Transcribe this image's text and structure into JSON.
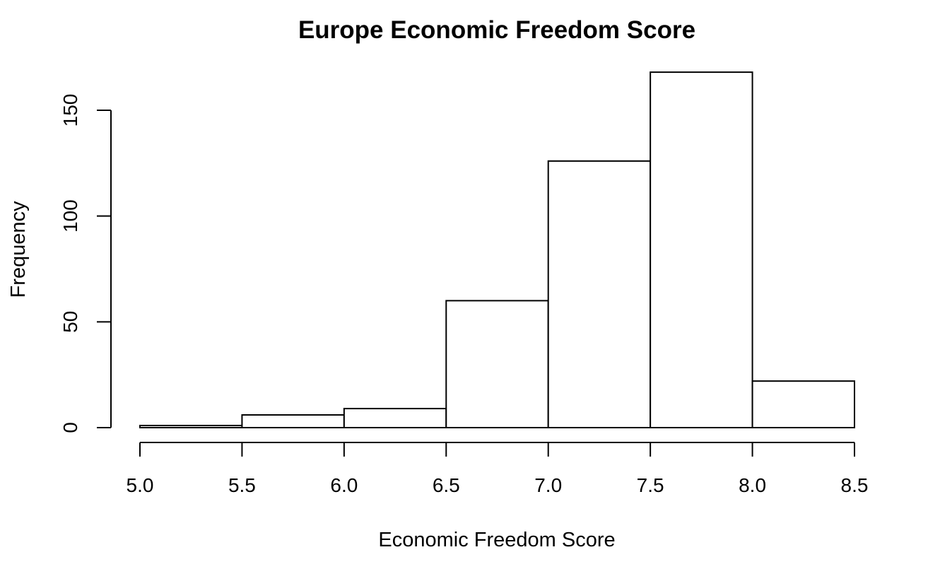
{
  "chart_data": {
    "type": "bar",
    "subtype": "histogram",
    "title": "Europe Economic Freedom Score",
    "xlabel": "Economic Freedom Score",
    "ylabel": "Frequency",
    "bin_edges": [
      5.0,
      5.5,
      6.0,
      6.5,
      7.0,
      7.5,
      8.0,
      8.5
    ],
    "values": [
      1,
      6,
      9,
      60,
      126,
      168,
      22
    ],
    "xlim": [
      5.0,
      8.5
    ],
    "ylim": [
      0,
      168
    ],
    "x_ticks": [
      "5.0",
      "5.5",
      "6.0",
      "6.5",
      "7.0",
      "7.5",
      "8.0",
      "8.5"
    ],
    "y_ticks": [
      "0",
      "50",
      "100",
      "150"
    ],
    "grid": false,
    "legend": "none",
    "bar_fill": "#ffffff",
    "bar_stroke": "#000000"
  }
}
